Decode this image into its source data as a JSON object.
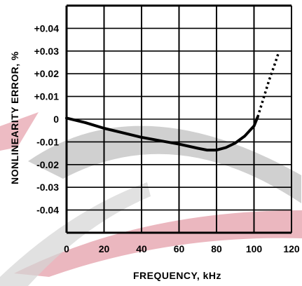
{
  "chart_data": {
    "type": "line",
    "xlabel": "FREQUENCY, kHz",
    "ylabel": "NONLINEARITY ERROR, %",
    "xlim": [
      0,
      120
    ],
    "ylim": [
      -0.05,
      0.05
    ],
    "x_ticks": [
      "0",
      "20",
      "40",
      "60",
      "80",
      "100",
      "120"
    ],
    "y_ticks": [
      "+0.04",
      "+0.03",
      "+0.02",
      "+0.01",
      "0",
      "-0.01",
      "-0.02",
      "-0.03",
      "-0.04"
    ],
    "grid": true,
    "colors": {
      "line": "#000000",
      "grid": "#000000",
      "swoosh_gray": "#c8c8c8",
      "swoosh_red": "#e8aab4"
    },
    "series": [
      {
        "style": "solid",
        "x": [
          0,
          10,
          20,
          30,
          40,
          50,
          60,
          70,
          75,
          80,
          85,
          90,
          95,
          100,
          102
        ],
        "y": [
          0.0005,
          -0.0015,
          -0.004,
          -0.006,
          -0.008,
          -0.0095,
          -0.011,
          -0.0128,
          -0.0136,
          -0.0136,
          -0.0125,
          -0.0105,
          -0.0075,
          -0.003,
          0.001
        ]
      },
      {
        "style": "dotted",
        "x": [
          102,
          105,
          108,
          111,
          113
        ],
        "y": [
          0.001,
          0.009,
          0.017,
          0.024,
          0.029
        ]
      }
    ]
  }
}
